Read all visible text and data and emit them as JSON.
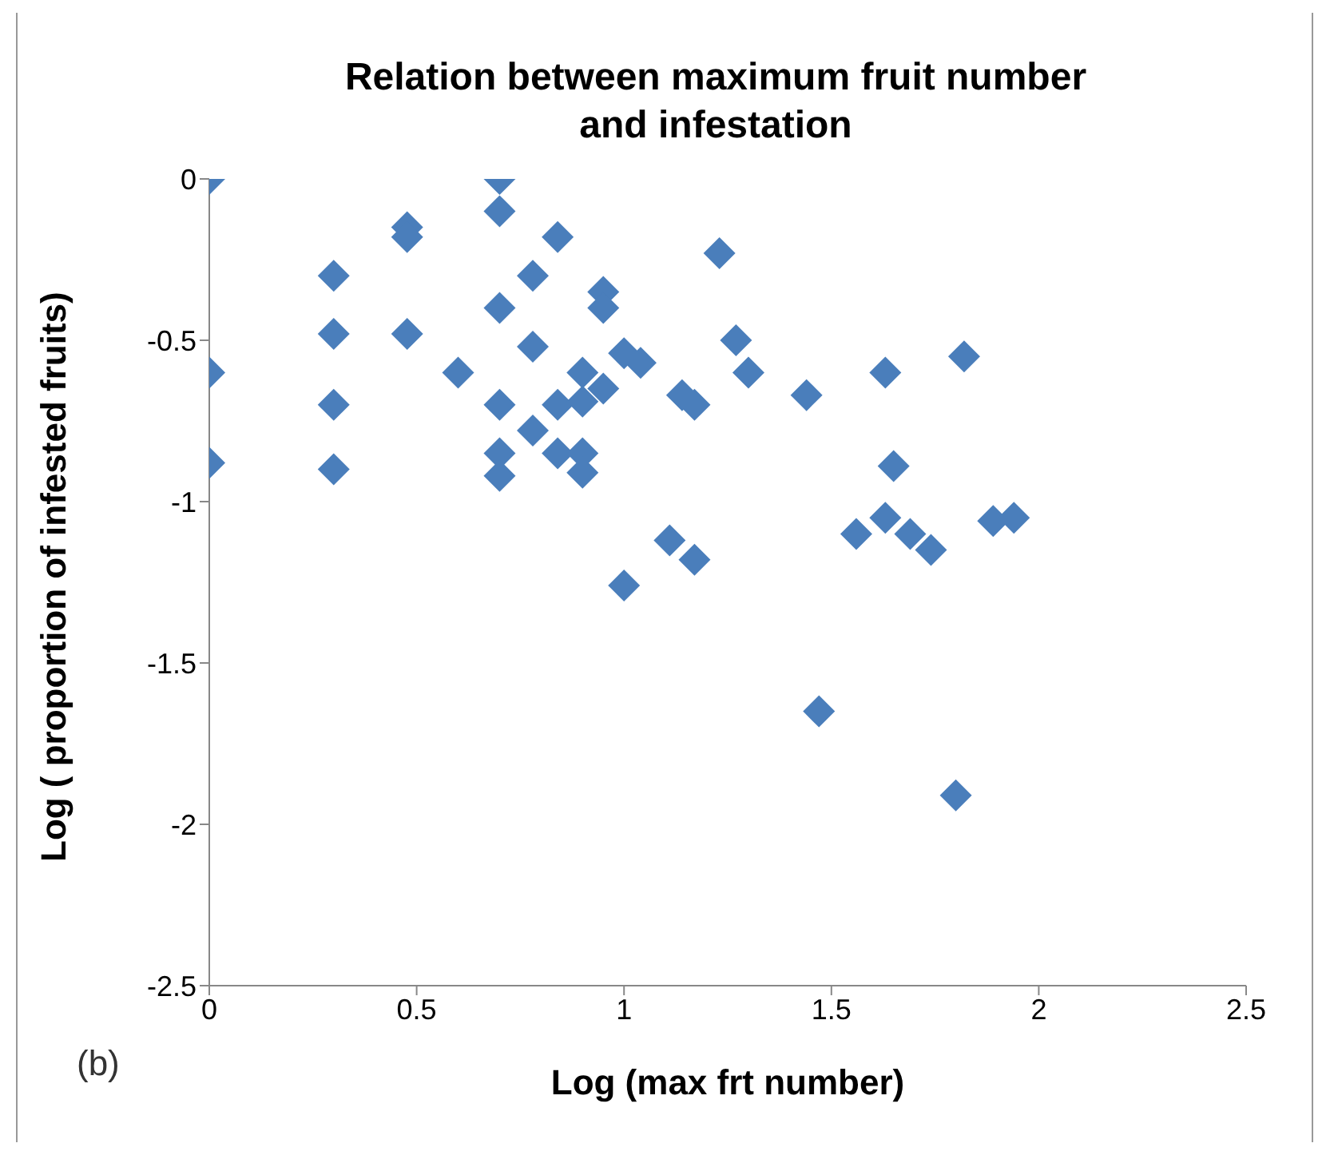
{
  "chart_data": {
    "type": "scatter",
    "title": "Relation between maximum fruit number and infestation",
    "xlabel": "Log (max frt number)",
    "ylabel": "Log ( proportion of infested fruits)",
    "annotations": [
      "(b)"
    ],
    "x": [
      0,
      0,
      0,
      0.3,
      0.3,
      0.3,
      0.3,
      0.477,
      0.477,
      0.477,
      0.6,
      0.7,
      0.7,
      0.7,
      0.7,
      0.7,
      0.7,
      0.84,
      0.78,
      0.78,
      0.78,
      0.84,
      0.84,
      0.9,
      0.9,
      0.9,
      0.9,
      0.95,
      0.95,
      0.95,
      1.0,
      1.04,
      1.0,
      1.23,
      1.27,
      1.3,
      1.14,
      1.17,
      1.44,
      1.63,
      1.82,
      1.65,
      1.11,
      1.17,
      1.56,
      1.63,
      1.69,
      1.74,
      1.89,
      1.94,
      1.47,
      1.8
    ],
    "series": [
      {
        "color": "#4a7ebb",
        "values": [
          0,
          -0.6,
          -0.88,
          -0.3,
          -0.48,
          -0.7,
          -0.9,
          -0.15,
          -0.18,
          -0.48,
          -0.6,
          0,
          -0.1,
          -0.4,
          -0.7,
          -0.85,
          -0.92,
          -0.18,
          -0.3,
          -0.52,
          -0.78,
          -0.7,
          -0.85,
          -0.6,
          -0.69,
          -0.85,
          -0.91,
          -0.35,
          -0.4,
          -0.65,
          -0.54,
          -0.57,
          -1.26,
          -0.23,
          -0.5,
          -0.6,
          -0.67,
          -0.7,
          -0.67,
          -0.6,
          -0.55,
          -0.89,
          -1.12,
          -1.18,
          -1.1,
          -1.05,
          -1.1,
          -1.15,
          -1.06,
          -1.05,
          -1.65,
          -1.91
        ]
      }
    ],
    "xlim": [
      0,
      2.5
    ],
    "xticks": [
      0,
      0.5,
      1,
      1.5,
      2,
      2.5
    ],
    "ylim": [
      -2.5,
      0
    ],
    "yticks": [
      -2.5,
      -2,
      -1.5,
      -1,
      -0.5,
      0
    ],
    "marker": "diamond"
  }
}
